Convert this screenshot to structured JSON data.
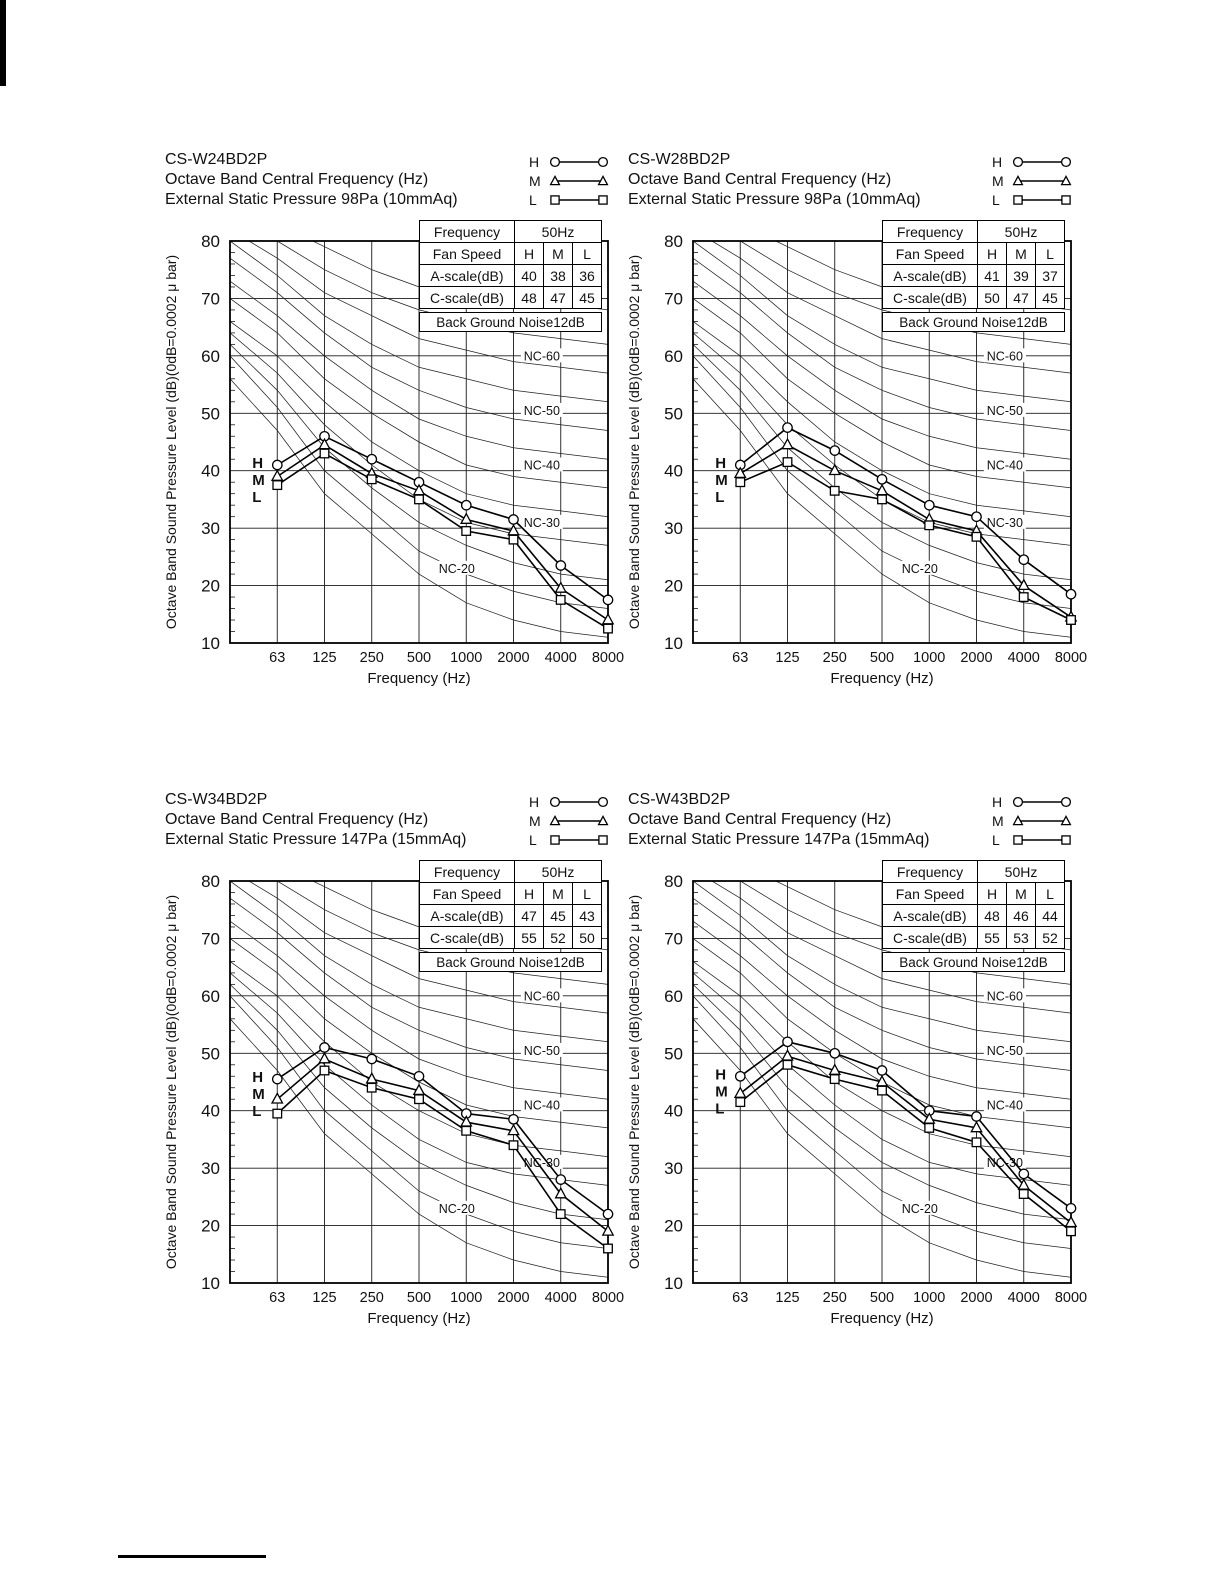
{
  "legend": {
    "entries": [
      {
        "label": "H",
        "marker": "circle"
      },
      {
        "label": "M",
        "marker": "triangle"
      },
      {
        "label": "L",
        "marker": "square"
      }
    ]
  },
  "nc_curves": {
    "x_stops_hz": [
      31.5,
      63,
      125,
      250,
      500,
      1000,
      2000,
      4000,
      8000
    ],
    "curves": [
      {
        "level": 15,
        "values": [
          56,
          47,
          36,
          29,
          22,
          17,
          14,
          12,
          11
        ]
      },
      {
        "level": 20,
        "values": [
          60,
          51,
          40,
          33,
          26,
          22,
          19,
          17,
          16
        ]
      },
      {
        "level": 25,
        "values": [
          62,
          54,
          44,
          37,
          31,
          27,
          24,
          22,
          21
        ]
      },
      {
        "level": 30,
        "values": [
          64,
          57,
          48,
          41,
          35,
          31,
          29,
          28,
          27
        ]
      },
      {
        "level": 35,
        "values": [
          66,
          60,
          52,
          45,
          40,
          36,
          34,
          33,
          32
        ]
      },
      {
        "level": 40,
        "values": [
          70,
          64,
          56,
          50,
          45,
          41,
          39,
          38,
          37
        ]
      },
      {
        "level": 45,
        "values": [
          73,
          67,
          60,
          54,
          49,
          46,
          44,
          43,
          42
        ]
      },
      {
        "level": 50,
        "values": [
          77,
          71,
          64,
          58,
          54,
          51,
          49,
          48,
          47
        ]
      },
      {
        "level": 55,
        "values": [
          80,
          74,
          67,
          62,
          58,
          56,
          54,
          53,
          52
        ]
      },
      {
        "level": 60,
        "values": [
          82,
          77,
          71,
          67,
          63,
          61,
          59,
          58,
          57
        ]
      },
      {
        "level": 65,
        "values": [
          84,
          80,
          75,
          71,
          68,
          66,
          64,
          63,
          62
        ]
      },
      {
        "level": 70,
        "values": [
          86,
          83,
          79,
          75,
          72,
          71,
          70,
          69,
          68
        ]
      }
    ],
    "labels": [
      {
        "text": "NC-20",
        "xi": 4.8,
        "v": 23
      },
      {
        "text": "NC-30",
        "xi": 6.6,
        "v": 31
      },
      {
        "text": "NC-40",
        "xi": 6.6,
        "v": 41
      },
      {
        "text": "NC-50",
        "xi": 6.6,
        "v": 50.5
      },
      {
        "text": "NC-60",
        "xi": 6.6,
        "v": 60
      }
    ]
  },
  "chart_data": [
    {
      "type": "line",
      "model": "CS-W24BD2P",
      "header_line2": "Octave Band Central Frequency (Hz)",
      "header_line3": "External Static Pressure 98Pa (10mmAq)",
      "xlabel": "Frequency (Hz)",
      "ylabel": "Octave Band Sound Pressure Level (dB)(0dB=0.0002 μ bar)",
      "x_categories": [
        "63",
        "125",
        "250",
        "500",
        "1000",
        "2000",
        "4000",
        "8000"
      ],
      "ylim": [
        10,
        80
      ],
      "y_ticks": [
        10,
        20,
        30,
        40,
        50,
        60,
        70,
        80
      ],
      "grid": true,
      "legend_position": "top-right",
      "nc_curve_labels": [
        "NC-20",
        "NC-30",
        "NC-40",
        "NC-50",
        "NC-60"
      ],
      "series": [
        {
          "name": "H",
          "marker": "circle",
          "values": [
            41,
            46,
            42,
            38,
            34,
            31.5,
            23.5,
            17.5
          ]
        },
        {
          "name": "M",
          "marker": "triangle",
          "values": [
            39,
            44.5,
            39.5,
            36.5,
            31.5,
            29.5,
            19.5,
            14
          ]
        },
        {
          "name": "L",
          "marker": "square",
          "values": [
            37.5,
            43,
            38.5,
            35,
            29.5,
            28,
            17.5,
            12.5
          ]
        }
      ],
      "table": {
        "frequency_label": "Frequency",
        "frequency_value": "50Hz",
        "fan_speed_label": "Fan Speed",
        "speeds": [
          "H",
          "M",
          "L"
        ],
        "a_scale_label": "A-scale(dB)",
        "a_scale": [
          40,
          38,
          36
        ],
        "c_scale_label": "C-scale(dB)",
        "c_scale": [
          48,
          47,
          45
        ],
        "background_noise": "Back Ground Noise12dB"
      }
    },
    {
      "type": "line",
      "model": "CS-W28BD2P",
      "header_line2": "Octave Band Central Frequency (Hz)",
      "header_line3": "External Static Pressure 98Pa (10mmAq)",
      "xlabel": "Frequency (Hz)",
      "ylabel": "Octave Band Sound Pressure Level (dB)(0dB=0.0002 μ bar)",
      "x_categories": [
        "63",
        "125",
        "250",
        "500",
        "1000",
        "2000",
        "4000",
        "8000"
      ],
      "ylim": [
        10,
        80
      ],
      "y_ticks": [
        10,
        20,
        30,
        40,
        50,
        60,
        70,
        80
      ],
      "grid": true,
      "legend_position": "top-right",
      "nc_curve_labels": [
        "NC-20",
        "NC-30",
        "NC-40",
        "NC-50",
        "NC-60"
      ],
      "series": [
        {
          "name": "H",
          "marker": "circle",
          "values": [
            41,
            47.5,
            43.5,
            38.5,
            34,
            32,
            24.5,
            18.5
          ]
        },
        {
          "name": "M",
          "marker": "triangle",
          "values": [
            39.5,
            44.5,
            40,
            36.5,
            31.5,
            29.5,
            20,
            14.5
          ]
        },
        {
          "name": "L",
          "marker": "square",
          "values": [
            38,
            41.5,
            36.5,
            35,
            30.5,
            28.5,
            18,
            14
          ]
        }
      ],
      "table": {
        "frequency_label": "Frequency",
        "frequency_value": "50Hz",
        "fan_speed_label": "Fan Speed",
        "speeds": [
          "H",
          "M",
          "L"
        ],
        "a_scale_label": "A-scale(dB)",
        "a_scale": [
          41,
          39,
          37
        ],
        "c_scale_label": "C-scale(dB)",
        "c_scale": [
          50,
          47,
          45
        ],
        "background_noise": "Back Ground Noise12dB"
      }
    },
    {
      "type": "line",
      "model": "CS-W34BD2P",
      "header_line2": "Octave Band Central Frequency (Hz)",
      "header_line3": "External Static Pressure 147Pa (15mmAq)",
      "xlabel": "Frequency (Hz)",
      "ylabel": "Octave Band Sound Pressure Level (dB)(0dB=0.0002 μ bar)",
      "x_categories": [
        "63",
        "125",
        "250",
        "500",
        "1000",
        "2000",
        "4000",
        "8000"
      ],
      "ylim": [
        10,
        80
      ],
      "y_ticks": [
        10,
        20,
        30,
        40,
        50,
        60,
        70,
        80
      ],
      "grid": true,
      "legend_position": "top-right",
      "nc_curve_labels": [
        "NC-20",
        "NC-30",
        "NC-40",
        "NC-50",
        "NC-60"
      ],
      "series": [
        {
          "name": "H",
          "marker": "circle",
          "values": [
            45.5,
            51,
            49,
            46,
            39.5,
            38.5,
            28,
            22
          ]
        },
        {
          "name": "M",
          "marker": "triangle",
          "values": [
            42,
            49,
            45.5,
            43.5,
            38,
            36.5,
            25.5,
            19
          ]
        },
        {
          "name": "L",
          "marker": "square",
          "values": [
            39.5,
            47,
            44,
            42,
            36.5,
            34,
            22,
            16
          ]
        }
      ],
      "table": {
        "frequency_label": "Frequency",
        "frequency_value": "50Hz",
        "fan_speed_label": "Fan Speed",
        "speeds": [
          "H",
          "M",
          "L"
        ],
        "a_scale_label": "A-scale(dB)",
        "a_scale": [
          47,
          45,
          43
        ],
        "c_scale_label": "C-scale(dB)",
        "c_scale": [
          55,
          52,
          50
        ],
        "background_noise": "Back Ground Noise12dB"
      }
    },
    {
      "type": "line",
      "model": "CS-W43BD2P",
      "header_line2": "Octave Band Central Frequency (Hz)",
      "header_line3": "External Static Pressure 147Pa (15mmAq)",
      "xlabel": "Frequency (Hz)",
      "ylabel": "Octave Band Sound Pressure Level (dB)(0dB=0.0002 μ bar)",
      "x_categories": [
        "63",
        "125",
        "250",
        "500",
        "1000",
        "2000",
        "4000",
        "8000"
      ],
      "ylim": [
        10,
        80
      ],
      "y_ticks": [
        10,
        20,
        30,
        40,
        50,
        60,
        70,
        80
      ],
      "grid": true,
      "legend_position": "top-right",
      "nc_curve_labels": [
        "NC-20",
        "NC-30",
        "NC-40",
        "NC-50",
        "NC-60"
      ],
      "series": [
        {
          "name": "H",
          "marker": "circle",
          "values": [
            46,
            52,
            50,
            47,
            40,
            39,
            29,
            23
          ]
        },
        {
          "name": "M",
          "marker": "triangle",
          "values": [
            43,
            49.5,
            47,
            45,
            38.5,
            37,
            27,
            20.5
          ]
        },
        {
          "name": "L",
          "marker": "square",
          "values": [
            41.5,
            48,
            45.5,
            43.5,
            37,
            34.5,
            25.5,
            19
          ]
        }
      ],
      "table": {
        "frequency_label": "Frequency",
        "frequency_value": "50Hz",
        "fan_speed_label": "Fan Speed",
        "speeds": [
          "H",
          "M",
          "L"
        ],
        "a_scale_label": "A-scale(dB)",
        "a_scale": [
          48,
          46,
          44
        ],
        "c_scale_label": "C-scale(dB)",
        "c_scale": [
          55,
          53,
          52
        ],
        "background_noise": "Back Ground Noise12dB"
      }
    }
  ]
}
